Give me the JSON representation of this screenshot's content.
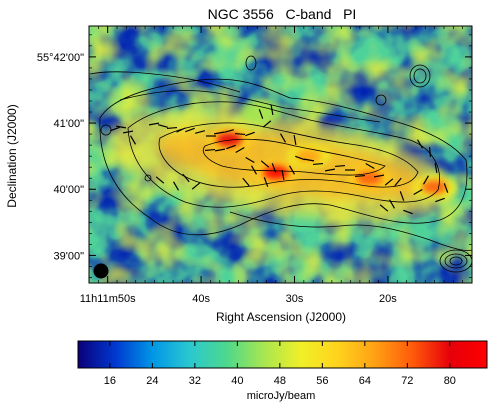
{
  "chart_data": {
    "type": "heatmap",
    "title": "NGC 3556   C-band   PI",
    "xlabel": "Right Ascension (J2000)",
    "ylabel": "Declination (J2000)",
    "x_ticks": [
      {
        "ra_sec": 50,
        "label": "11h11m50s"
      },
      {
        "ra_sec": 40,
        "label": "40s"
      },
      {
        "ra_sec": 30,
        "label": "30s"
      },
      {
        "ra_sec": 20,
        "label": "20s"
      }
    ],
    "y_ticks": [
      {
        "dec_arcsec": 120,
        "label": "55°42'00\""
      },
      {
        "dec_arcsec": 60,
        "label": "41'00\""
      },
      {
        "dec_arcsec": 0,
        "label": "40'00\""
      },
      {
        "dec_arcsec": -60,
        "label": "39'00\""
      }
    ],
    "ra_range_sec": [
      52,
      11
    ],
    "dec_range_arcsec": [
      148,
      -85
    ],
    "colorbar": {
      "label": "microJy/beam",
      "range": [
        10,
        87
      ],
      "ticks": [
        16,
        24,
        32,
        40,
        48,
        56,
        64,
        72,
        80
      ],
      "colormap": [
        "#0a0078",
        "#0038d0",
        "#0096e6",
        "#2ac8d0",
        "#4ed88c",
        "#a8e650",
        "#f0f028",
        "#ffd21e",
        "#ffa014",
        "#ff5a0a",
        "#e6000a",
        "#ff0000"
      ]
    },
    "emission_peaks": [
      {
        "ra_sec": 37,
        "dec_arcsec": 45,
        "value": 82
      },
      {
        "ra_sec": 32,
        "dec_arcsec": 15,
        "value": 84
      },
      {
        "ra_sec": 28.5,
        "dec_arcsec": 30,
        "value": 66
      },
      {
        "ra_sec": 22,
        "dec_arcsec": 10,
        "value": 76
      },
      {
        "ra_sec": 15,
        "dec_arcsec": 2,
        "value": 70
      },
      {
        "ra_sec": 33.5,
        "dec_arcsec": 70,
        "value": 48
      }
    ],
    "beam": {
      "ra_sec": 50.2,
      "dec_arcsec": -75
    }
  }
}
